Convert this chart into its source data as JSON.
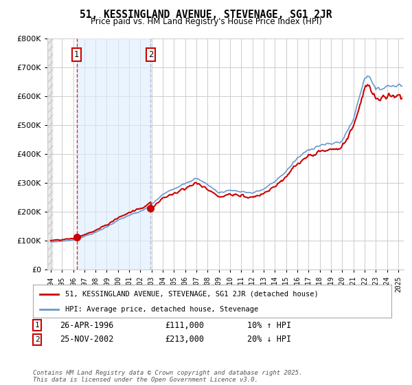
{
  "title": "51, KESSINGLAND AVENUE, STEVENAGE, SG1 2JR",
  "subtitle": "Price paid vs. HM Land Registry's House Price Index (HPI)",
  "legend_line1": "51, KESSINGLAND AVENUE, STEVENAGE, SG1 2JR (detached house)",
  "legend_line2": "HPI: Average price, detached house, Stevenage",
  "footer": "Contains HM Land Registry data © Crown copyright and database right 2025.\nThis data is licensed under the Open Government Licence v3.0.",
  "annotation1_date": "26-APR-1996",
  "annotation1_price": "£111,000",
  "annotation1_hpi": "10% ↑ HPI",
  "annotation2_date": "25-NOV-2002",
  "annotation2_price": "£213,000",
  "annotation2_hpi": "20% ↓ HPI",
  "sale1_year": 1996.32,
  "sale1_price": 111000,
  "sale2_year": 2002.92,
  "sale2_price": 213000,
  "red_color": "#cc0000",
  "blue_color": "#6699cc",
  "shade_color": "#ddeeff",
  "background_color": "#ffffff",
  "grid_color": "#cccccc",
  "ylim": [
    0,
    800000
  ],
  "xlim_start": 1993.7,
  "xlim_end": 2025.5,
  "yticks": [
    0,
    100000,
    200000,
    300000,
    400000,
    500000,
    600000,
    700000,
    800000
  ],
  "xticks": [
    1994,
    1995,
    1996,
    1997,
    1998,
    1999,
    2000,
    2001,
    2002,
    2003,
    2004,
    2005,
    2006,
    2007,
    2008,
    2009,
    2010,
    2011,
    2012,
    2013,
    2014,
    2015,
    2016,
    2017,
    2018,
    2019,
    2020,
    2021,
    2022,
    2023,
    2024,
    2025
  ]
}
